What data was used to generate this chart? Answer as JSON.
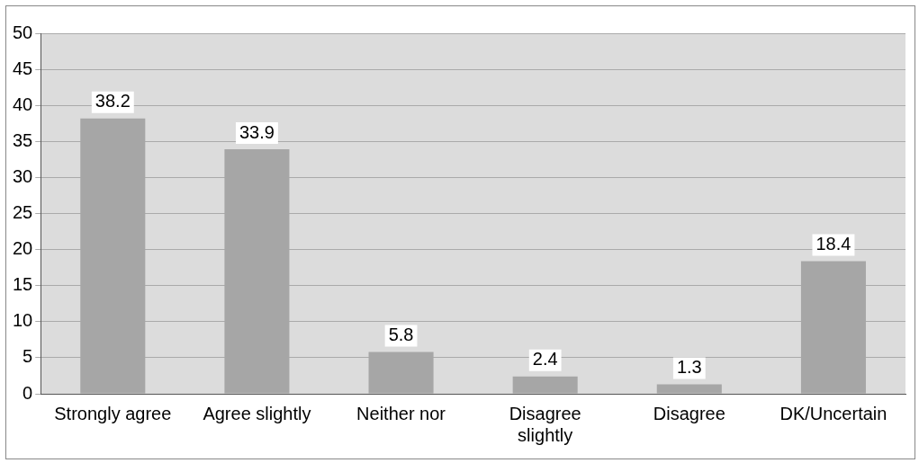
{
  "chart_data": {
    "type": "bar",
    "categories": [
      "Strongly agree",
      "Agree slightly",
      "Neither nor",
      "Disagree slightly",
      "Disagree",
      "DK/Uncertain"
    ],
    "values": [
      38.2,
      33.9,
      5.8,
      2.4,
      1.3,
      18.4
    ],
    "color": "#a6a6a6",
    "ylim": [
      0,
      50
    ],
    "yticks": [
      0,
      5,
      10,
      15,
      20,
      25,
      30,
      35,
      40,
      45,
      50
    ],
    "grid": "y",
    "legend": false,
    "data_labels": true
  }
}
